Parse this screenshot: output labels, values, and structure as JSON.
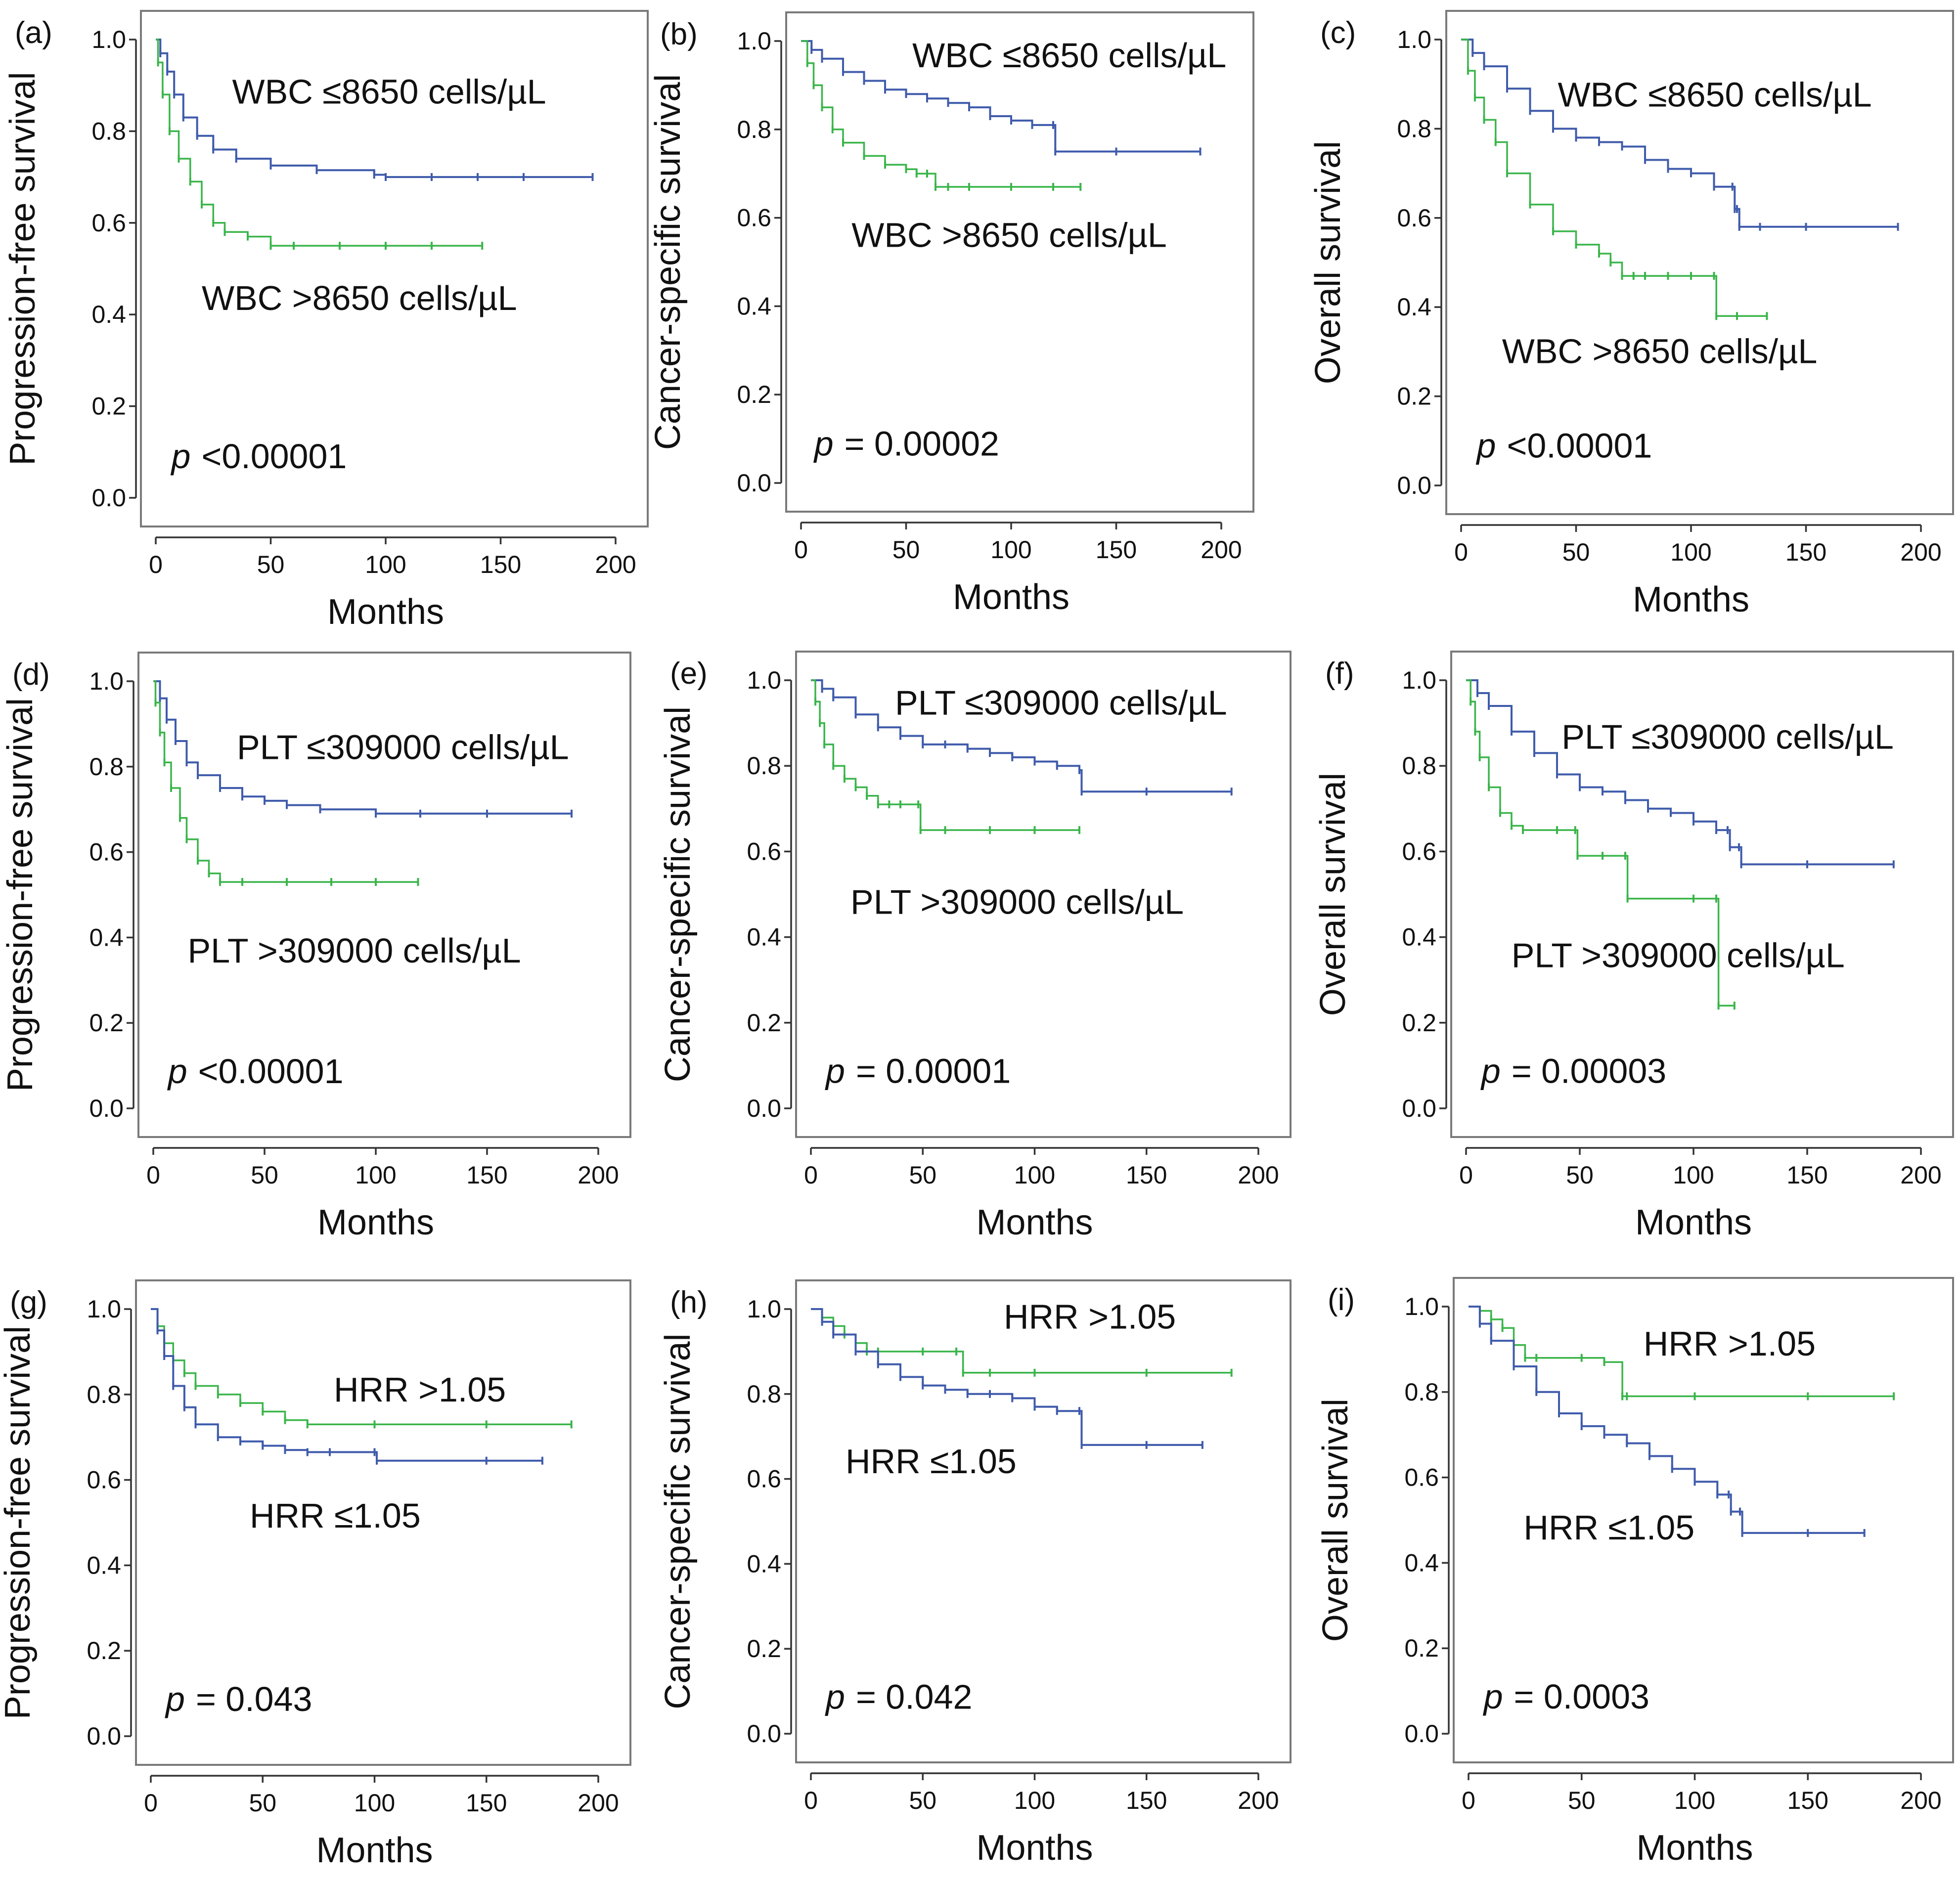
{
  "colors": {
    "high_group": "#3ab54a",
    "low_group": "#3f5bab",
    "frame": "#7a7a7a"
  },
  "chart_data": [
    {
      "panel": "(a)",
      "type": "line",
      "ylabel": "Progression-free survival",
      "xlabel": "Months",
      "xlim": [
        0,
        200
      ],
      "ylim": [
        0,
        1.0
      ],
      "xticks": [
        "0",
        "50",
        "100",
        "150",
        "200"
      ],
      "yticks": [
        "0.0",
        "0.2",
        "0.4",
        "0.6",
        "0.8",
        "1.0"
      ],
      "p_symbol": "p",
      "p_text": "<0.00001",
      "series": [
        {
          "name": "WBC ≤8650 cells/µL",
          "group": "low",
          "x": [
            0,
            2,
            5,
            8,
            12,
            18,
            25,
            35,
            50,
            70,
            95,
            100,
            120,
            140,
            160,
            190
          ],
          "y": [
            1.0,
            0.97,
            0.93,
            0.88,
            0.83,
            0.79,
            0.76,
            0.74,
            0.725,
            0.715,
            0.705,
            0.7,
            0.7,
            0.7,
            0.7,
            0.7
          ]
        },
        {
          "name": "WBC >8650 cells/µL",
          "group": "high",
          "x": [
            0,
            1,
            3,
            6,
            10,
            15,
            20,
            25,
            30,
            40,
            50,
            60,
            80,
            100,
            120,
            142
          ],
          "y": [
            1.0,
            0.95,
            0.88,
            0.8,
            0.74,
            0.69,
            0.64,
            0.6,
            0.58,
            0.57,
            0.55,
            0.55,
            0.55,
            0.55,
            0.55,
            0.55
          ]
        }
      ]
    },
    {
      "panel": "(b)",
      "type": "line",
      "ylabel": "Cancer-specific survival",
      "xlabel": "Months",
      "xlim": [
        0,
        200
      ],
      "ylim": [
        0,
        1.0
      ],
      "xticks": [
        "0",
        "50",
        "100",
        "150",
        "200"
      ],
      "yticks": [
        "0.0",
        "0.2",
        "0.4",
        "0.6",
        "0.8",
        "1.0"
      ],
      "p_symbol": "p",
      "p_text": "= 0.00002",
      "series": [
        {
          "name": "WBC ≤8650 cells/µL",
          "group": "low",
          "x": [
            0,
            5,
            10,
            20,
            30,
            40,
            50,
            60,
            70,
            80,
            90,
            100,
            110,
            120,
            121,
            150,
            190
          ],
          "y": [
            1.0,
            0.98,
            0.96,
            0.93,
            0.91,
            0.89,
            0.88,
            0.87,
            0.86,
            0.85,
            0.83,
            0.82,
            0.81,
            0.81,
            0.75,
            0.75,
            0.75
          ]
        },
        {
          "name": "WBC >8650 cells/µL",
          "group": "high",
          "x": [
            0,
            3,
            6,
            10,
            15,
            20,
            30,
            40,
            50,
            55,
            60,
            64,
            70,
            80,
            100,
            120,
            133
          ],
          "y": [
            1.0,
            0.95,
            0.9,
            0.85,
            0.8,
            0.77,
            0.74,
            0.72,
            0.71,
            0.7,
            0.7,
            0.67,
            0.67,
            0.67,
            0.67,
            0.67,
            0.67
          ]
        }
      ]
    },
    {
      "panel": "(c)",
      "type": "line",
      "ylabel": "Overall survival",
      "xlabel": "Months",
      "xlim": [
        0,
        200
      ],
      "ylim": [
        0,
        1.0
      ],
      "xticks": [
        "0",
        "50",
        "100",
        "150",
        "200"
      ],
      "yticks": [
        "0.0",
        "0.2",
        "0.4",
        "0.6",
        "0.8",
        "1.0"
      ],
      "p_symbol": "p",
      "p_text": "<0.00001",
      "series": [
        {
          "name": "WBC ≤8650 cells/µL",
          "group": "low",
          "x": [
            0,
            5,
            10,
            20,
            30,
            40,
            50,
            60,
            70,
            80,
            90,
            100,
            110,
            118,
            119,
            120,
            121,
            130,
            150,
            190
          ],
          "y": [
            1.0,
            0.97,
            0.94,
            0.89,
            0.84,
            0.8,
            0.78,
            0.77,
            0.76,
            0.73,
            0.71,
            0.7,
            0.67,
            0.67,
            0.62,
            0.62,
            0.58,
            0.58,
            0.58,
            0.58
          ]
        },
        {
          "name": "WBC >8650 cells/µL",
          "group": "high",
          "x": [
            0,
            3,
            6,
            10,
            15,
            20,
            30,
            40,
            50,
            60,
            65,
            70,
            75,
            80,
            90,
            100,
            110,
            111,
            120,
            133
          ],
          "y": [
            1.0,
            0.93,
            0.87,
            0.82,
            0.77,
            0.7,
            0.63,
            0.57,
            0.54,
            0.52,
            0.5,
            0.47,
            0.47,
            0.47,
            0.47,
            0.47,
            0.47,
            0.38,
            0.38,
            0.38
          ]
        }
      ]
    },
    {
      "panel": "(d)",
      "type": "line",
      "ylabel": "Progression-free survival",
      "xlabel": "Months",
      "xlim": [
        0,
        200
      ],
      "ylim": [
        0,
        1.0
      ],
      "xticks": [
        "0",
        "50",
        "100",
        "150",
        "200"
      ],
      "yticks": [
        "0.0",
        "0.2",
        "0.4",
        "0.6",
        "0.8",
        "1.0"
      ],
      "p_symbol": "p",
      "p_text": "<0.00001",
      "series": [
        {
          "name": "PLT ≤309000 cells/µL",
          "group": "low",
          "x": [
            0,
            3,
            6,
            10,
            15,
            20,
            30,
            40,
            50,
            60,
            75,
            100,
            120,
            150,
            188
          ],
          "y": [
            1.0,
            0.96,
            0.91,
            0.86,
            0.81,
            0.78,
            0.75,
            0.73,
            0.72,
            0.71,
            0.7,
            0.69,
            0.69,
            0.69,
            0.69
          ]
        },
        {
          "name": "PLT >309000 cells/µL",
          "group": "high",
          "x": [
            0,
            1,
            3,
            5,
            8,
            12,
            15,
            20,
            25,
            30,
            40,
            60,
            80,
            100,
            119
          ],
          "y": [
            1.0,
            0.95,
            0.88,
            0.81,
            0.75,
            0.68,
            0.63,
            0.58,
            0.55,
            0.53,
            0.53,
            0.53,
            0.53,
            0.53,
            0.53
          ]
        }
      ]
    },
    {
      "panel": "(e)",
      "type": "line",
      "ylabel": "Cancer-specific survival",
      "xlabel": "Months",
      "xlim": [
        0,
        200
      ],
      "ylim": [
        0,
        1.0
      ],
      "xticks": [
        "0",
        "50",
        "100",
        "150",
        "200"
      ],
      "yticks": [
        "0.0",
        "0.2",
        "0.4",
        "0.6",
        "0.8",
        "1.0"
      ],
      "p_symbol": "p",
      "p_text": "= 0.00001",
      "series": [
        {
          "name": "PLT ≤309000 cells/µL",
          "group": "low",
          "x": [
            0,
            5,
            10,
            20,
            30,
            40,
            50,
            60,
            70,
            80,
            90,
            100,
            110,
            120,
            121,
            150,
            188
          ],
          "y": [
            1.0,
            0.98,
            0.96,
            0.92,
            0.89,
            0.87,
            0.85,
            0.85,
            0.84,
            0.83,
            0.82,
            0.81,
            0.8,
            0.79,
            0.74,
            0.74,
            0.74
          ]
        },
        {
          "name": "PLT >309000 cells/µL",
          "group": "high",
          "x": [
            0,
            2,
            4,
            6,
            10,
            15,
            20,
            25,
            30,
            35,
            40,
            48,
            49,
            60,
            80,
            100,
            120
          ],
          "y": [
            1.0,
            0.95,
            0.9,
            0.85,
            0.8,
            0.77,
            0.75,
            0.73,
            0.71,
            0.71,
            0.71,
            0.71,
            0.65,
            0.65,
            0.65,
            0.65,
            0.65
          ]
        }
      ]
    },
    {
      "panel": "(f)",
      "type": "line",
      "ylabel": "Overall survival",
      "xlabel": "Months",
      "xlim": [
        0,
        200
      ],
      "ylim": [
        0,
        1.0
      ],
      "xticks": [
        "0",
        "50",
        "100",
        "150",
        "200"
      ],
      "yticks": [
        "0.0",
        "0.2",
        "0.4",
        "0.6",
        "0.8",
        "1.0"
      ],
      "p_symbol": "p",
      "p_text": "= 0.00003",
      "series": [
        {
          "name": "PLT ≤309000 cells/µL",
          "group": "low",
          "x": [
            0,
            5,
            10,
            20,
            30,
            40,
            50,
            60,
            70,
            80,
            90,
            100,
            110,
            115,
            116,
            120,
            121,
            150,
            188
          ],
          "y": [
            1.0,
            0.97,
            0.94,
            0.88,
            0.83,
            0.78,
            0.75,
            0.74,
            0.72,
            0.7,
            0.69,
            0.67,
            0.65,
            0.65,
            0.61,
            0.61,
            0.57,
            0.57,
            0.57
          ]
        },
        {
          "name": "PLT >309000 cells/µL",
          "group": "high",
          "x": [
            0,
            2,
            4,
            6,
            10,
            15,
            20,
            25,
            40,
            48,
            49,
            60,
            70,
            71,
            100,
            110,
            111,
            118
          ],
          "y": [
            1.0,
            0.95,
            0.88,
            0.82,
            0.75,
            0.69,
            0.66,
            0.65,
            0.65,
            0.65,
            0.59,
            0.59,
            0.59,
            0.49,
            0.49,
            0.49,
            0.24,
            0.24
          ]
        }
      ]
    },
    {
      "panel": "(g)",
      "type": "line",
      "ylabel": "Progression-free survival",
      "xlabel": "Months",
      "xlim": [
        0,
        200
      ],
      "ylim": [
        0,
        1.0
      ],
      "xticks": [
        "0",
        "50",
        "100",
        "150",
        "200"
      ],
      "yticks": [
        "0.0",
        "0.2",
        "0.4",
        "0.6",
        "0.8",
        "1.0"
      ],
      "p_symbol": "p",
      "p_text": "= 0.043",
      "series": [
        {
          "name": "HRR >1.05",
          "group": "high",
          "x": [
            0,
            3,
            6,
            10,
            15,
            20,
            30,
            40,
            50,
            60,
            70,
            100,
            150,
            188
          ],
          "y": [
            1.0,
            0.96,
            0.92,
            0.88,
            0.85,
            0.82,
            0.8,
            0.78,
            0.76,
            0.74,
            0.73,
            0.73,
            0.73,
            0.73
          ]
        },
        {
          "name": "HRR ≤1.05",
          "group": "low",
          "x": [
            0,
            3,
            6,
            10,
            15,
            20,
            30,
            40,
            50,
            60,
            70,
            80,
            100,
            101,
            150,
            175
          ],
          "y": [
            1.0,
            0.95,
            0.89,
            0.82,
            0.77,
            0.73,
            0.7,
            0.69,
            0.68,
            0.67,
            0.665,
            0.665,
            0.665,
            0.645,
            0.645,
            0.645
          ]
        }
      ]
    },
    {
      "panel": "(h)",
      "type": "line",
      "ylabel": "Cancer-specific survival",
      "xlabel": "Months",
      "xlim": [
        0,
        200
      ],
      "ylim": [
        0,
        1.0
      ],
      "xticks": [
        "0",
        "50",
        "100",
        "150",
        "200"
      ],
      "yticks": [
        "0.0",
        "0.2",
        "0.4",
        "0.6",
        "0.8",
        "1.0"
      ],
      "p_symbol": "p",
      "p_text": "= 0.042",
      "series": [
        {
          "name": "HRR >1.05",
          "group": "high",
          "x": [
            0,
            5,
            10,
            15,
            20,
            25,
            30,
            50,
            65,
            68,
            80,
            100,
            150,
            188
          ],
          "y": [
            1.0,
            0.98,
            0.96,
            0.94,
            0.92,
            0.9,
            0.9,
            0.9,
            0.9,
            0.85,
            0.85,
            0.85,
            0.85,
            0.85
          ]
        },
        {
          "name": "HRR ≤1.05",
          "group": "low",
          "x": [
            0,
            5,
            10,
            20,
            30,
            40,
            50,
            60,
            70,
            80,
            90,
            100,
            110,
            120,
            121,
            150,
            175
          ],
          "y": [
            1.0,
            0.97,
            0.94,
            0.9,
            0.87,
            0.84,
            0.82,
            0.81,
            0.8,
            0.8,
            0.79,
            0.77,
            0.76,
            0.76,
            0.68,
            0.68,
            0.68
          ]
        }
      ]
    },
    {
      "panel": "(i)",
      "type": "line",
      "ylabel": "Overall survival",
      "xlabel": "Months",
      "xlim": [
        0,
        200
      ],
      "ylim": [
        0,
        1.0
      ],
      "xticks": [
        "0",
        "50",
        "100",
        "150",
        "200"
      ],
      "yticks": [
        "0.0",
        "0.2",
        "0.4",
        "0.6",
        "0.8",
        "1.0"
      ],
      "p_symbol": "p",
      "p_text": "= 0.0003",
      "series": [
        {
          "name": "HRR >1.05",
          "group": "high",
          "x": [
            0,
            5,
            10,
            15,
            20,
            25,
            30,
            50,
            60,
            68,
            70,
            100,
            150,
            188
          ],
          "y": [
            1.0,
            0.99,
            0.97,
            0.95,
            0.91,
            0.88,
            0.88,
            0.88,
            0.87,
            0.79,
            0.79,
            0.79,
            0.79,
            0.79
          ]
        },
        {
          "name": "HRR ≤1.05",
          "group": "low",
          "x": [
            0,
            5,
            10,
            20,
            30,
            40,
            50,
            60,
            70,
            80,
            90,
            100,
            110,
            115,
            116,
            120,
            121,
            150,
            175
          ],
          "y": [
            1.0,
            0.96,
            0.92,
            0.86,
            0.8,
            0.75,
            0.72,
            0.7,
            0.68,
            0.65,
            0.62,
            0.59,
            0.56,
            0.56,
            0.52,
            0.52,
            0.47,
            0.47,
            0.47
          ]
        }
      ]
    }
  ]
}
